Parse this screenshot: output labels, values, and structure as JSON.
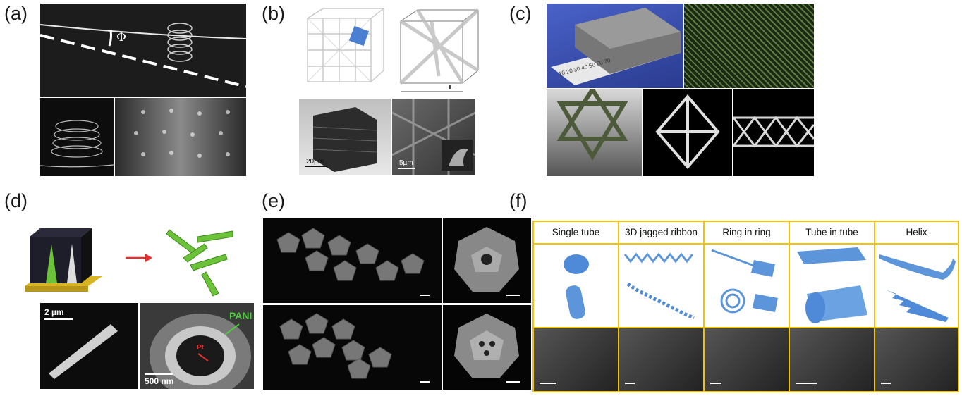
{
  "panel_labels": {
    "a": "(a)",
    "b": "(b)",
    "c": "(c)",
    "d": "(d)",
    "e": "(e)",
    "f": "(f)"
  },
  "panel_a": {
    "angle_symbol": "Φ"
  },
  "panel_b": {
    "dimension_label": "L",
    "scale_left": "20µm",
    "scale_right": "5µm"
  },
  "panel_c": {
    "ruler_text": "10 20 30 40 50 60 70"
  },
  "panel_d": {
    "scale_top": "2 µm",
    "scale_bottom": "500 nm",
    "pani_label": "PANI",
    "pt_label": "Pt"
  },
  "panel_f": {
    "headers": [
      "Single tube",
      "3D jagged ribbon",
      "Ring in ring",
      "Tube in tube",
      "Helix"
    ]
  },
  "colors": {
    "highlight_yellow": "#f2c300",
    "green": "#5cb82a",
    "blue": "#5c95d9"
  }
}
